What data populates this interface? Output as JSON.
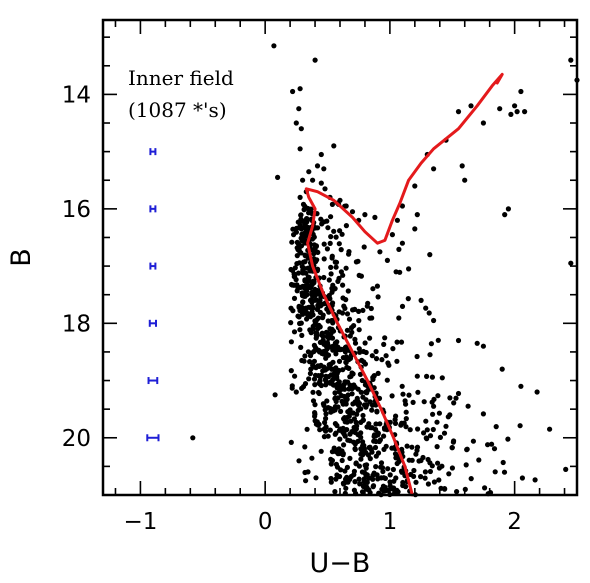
{
  "chart_data": {
    "type": "scatter",
    "xlabel": "U−B",
    "ylabel": "B",
    "xlim": [
      -1.3,
      2.5
    ],
    "ylim": [
      21.0,
      12.7
    ],
    "y_inverted": true,
    "x_ticks": [
      -1,
      0,
      1,
      2
    ],
    "x_tick_labels": [
      "−1",
      "0",
      "1",
      "2"
    ],
    "y_ticks": [
      14,
      16,
      18,
      20
    ],
    "y_tick_labels": [
      "14",
      "16",
      "18",
      "20"
    ],
    "x_minor_step": 0.2,
    "y_minor_step": 0.5,
    "grid": false,
    "annotation_lines": [
      "Inner field",
      "(1087 *'s)"
    ],
    "colors": {
      "stars": "#000000",
      "isochrone": "#e41a1c",
      "errorbars": "#1f1fd6"
    },
    "error_bars": [
      {
        "x": -0.9,
        "y": 15.0,
        "xerr": 0.02
      },
      {
        "x": -0.9,
        "y": 16.0,
        "xerr": 0.02
      },
      {
        "x": -0.9,
        "y": 17.0,
        "xerr": 0.02
      },
      {
        "x": -0.9,
        "y": 18.0,
        "xerr": 0.025
      },
      {
        "x": -0.9,
        "y": 19.0,
        "xerr": 0.035
      },
      {
        "x": -0.9,
        "y": 20.0,
        "xerr": 0.045
      }
    ],
    "isochrone": [
      [
        1.18,
        21.0
      ],
      [
        1.12,
        20.5
      ],
      [
        1.03,
        20.0
      ],
      [
        0.93,
        19.5
      ],
      [
        0.82,
        19.0
      ],
      [
        0.7,
        18.5
      ],
      [
        0.58,
        18.0
      ],
      [
        0.47,
        17.5
      ],
      [
        0.38,
        17.0
      ],
      [
        0.34,
        16.6
      ],
      [
        0.38,
        16.3
      ],
      [
        0.4,
        16.0
      ],
      [
        0.35,
        15.8
      ],
      [
        0.33,
        15.65
      ],
      [
        0.42,
        15.7
      ],
      [
        0.55,
        15.85
      ],
      [
        0.7,
        16.15
      ],
      [
        0.8,
        16.4
      ],
      [
        0.9,
        16.6
      ],
      [
        0.96,
        16.55
      ],
      [
        1.02,
        16.2
      ],
      [
        1.08,
        15.9
      ],
      [
        1.15,
        15.5
      ],
      [
        1.25,
        15.2
      ],
      [
        1.35,
        14.95
      ],
      [
        1.55,
        14.6
      ],
      [
        1.7,
        14.2
      ],
      [
        1.82,
        13.85
      ],
      [
        1.9,
        13.65
      ],
      [
        1.86,
        13.8
      ]
    ],
    "bright_stars": [
      [
        0.07,
        13.15
      ],
      [
        0.4,
        13.4
      ],
      [
        0.22,
        13.95
      ],
      [
        0.28,
        13.9
      ],
      [
        0.27,
        14.25
      ],
      [
        0.25,
        14.5
      ],
      [
        0.29,
        14.6
      ],
      [
        0.28,
        14.95
      ],
      [
        0.45,
        15.05
      ],
      [
        0.55,
        14.9
      ],
      [
        0.42,
        15.25
      ],
      [
        0.47,
        15.3
      ],
      [
        0.35,
        15.35
      ],
      [
        0.1,
        15.45
      ],
      [
        0.3,
        15.5
      ],
      [
        0.38,
        15.5
      ],
      [
        0.45,
        15.55
      ],
      [
        0.48,
        15.65
      ],
      [
        0.52,
        15.8
      ],
      [
        0.58,
        15.9
      ],
      [
        0.65,
        15.95
      ],
      [
        0.7,
        16.05
      ],
      [
        0.8,
        16.1
      ],
      [
        0.88,
        16.15
      ],
      [
        0.75,
        16.2
      ],
      [
        0.6,
        15.85
      ],
      [
        0.33,
        15.7
      ],
      [
        0.28,
        15.8
      ],
      [
        1.3,
        15.05
      ],
      [
        1.45,
        14.8
      ],
      [
        1.55,
        14.3
      ],
      [
        1.65,
        14.2
      ],
      [
        1.75,
        14.5
      ],
      [
        1.88,
        14.25
      ],
      [
        2.02,
        14.3
      ],
      [
        2.08,
        14.3
      ],
      [
        2.05,
        13.95
      ],
      [
        2.0,
        14.2
      ],
      [
        1.97,
        14.35
      ],
      [
        2.45,
        13.4
      ],
      [
        2.5,
        13.75
      ],
      [
        1.58,
        15.25
      ],
      [
        1.6,
        15.5
      ],
      [
        1.35,
        15.3
      ],
      [
        1.2,
        15.6
      ],
      [
        1.1,
        15.95
      ],
      [
        1.06,
        16.2
      ],
      [
        1.02,
        16.45
      ],
      [
        1.1,
        16.6
      ],
      [
        0.92,
        16.75
      ],
      [
        0.98,
        16.9
      ],
      [
        1.05,
        17.1
      ],
      [
        1.15,
        17.05
      ],
      [
        0.9,
        17.35
      ],
      [
        1.2,
        16.35
      ],
      [
        1.22,
        16.1
      ],
      [
        1.32,
        16.8
      ],
      [
        1.25,
        17.6
      ],
      [
        1.35,
        17.95
      ],
      [
        1.95,
        16.0
      ],
      [
        1.92,
        16.1
      ],
      [
        1.45,
        19.8
      ],
      [
        1.7,
        18.35
      ],
      [
        1.75,
        18.4
      ],
      [
        1.9,
        18.8
      ],
      [
        2.05,
        19.1
      ],
      [
        2.18,
        19.2
      ],
      [
        2.28,
        19.85
      ],
      [
        2.45,
        16.95
      ],
      [
        0.08,
        19.25
      ],
      [
        -0.58,
        20.0
      ],
      [
        1.55,
        18.3
      ],
      [
        1.35,
        19.45
      ],
      [
        1.48,
        19.6
      ],
      [
        1.62,
        20.2
      ]
    ],
    "field_seed": 1087
  }
}
